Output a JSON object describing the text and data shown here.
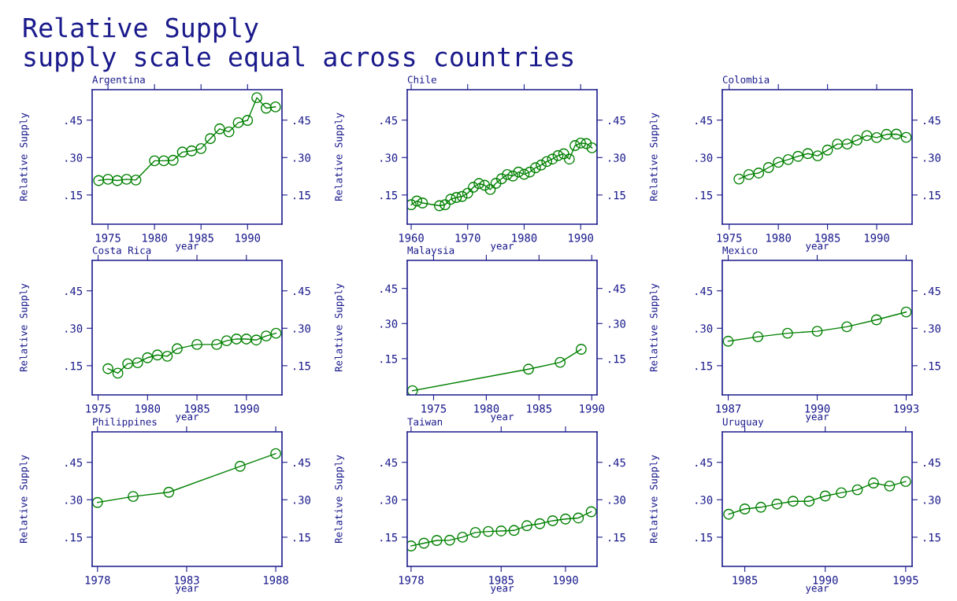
{
  "chart_data": [
    {
      "type": "line",
      "title": "Argentina",
      "annotations": [
        "Relative Supply",
        "supply scale equal across countries"
      ],
      "xlabel": "year",
      "ylabel": "Relative Supply",
      "marker": "circle",
      "line_style": "solid",
      "grid": false,
      "x": [
        1974,
        1975,
        1976,
        1977,
        1978,
        1980,
        1981,
        1982,
        1983,
        1984,
        1985,
        1986,
        1987,
        1988,
        1989,
        1990,
        1991,
        1992,
        1993
      ],
      "series": [
        {
          "color": "#008000",
          "values": [
            0.208,
            0.213,
            0.208,
            0.213,
            0.21,
            0.287,
            0.287,
            0.289,
            0.322,
            0.327,
            0.336,
            0.376,
            0.415,
            0.403,
            0.44,
            0.449,
            0.54,
            0.498,
            0.503
          ]
        }
      ],
      "xlim": [
        1973.3,
        1993.7
      ],
      "xticks": [
        1975,
        1980,
        1985,
        1990
      ],
      "ylim": [
        0.033,
        0.572
      ],
      "yticks": [
        {
          "value": 0.15,
          "label": ".15"
        },
        {
          "value": 0.3,
          "label": ".30"
        },
        {
          "value": 0.45,
          "label": ".45"
        }
      ],
      "y2lim": [
        0.033,
        0.572
      ],
      "y2ticks": [
        {
          "value": 0.15,
          "label": ".15"
        },
        {
          "value": 0.3,
          "label": ".30"
        },
        {
          "value": 0.45,
          "label": ".45"
        }
      ]
    },
    {
      "type": "line",
      "title": "Chile",
      "xlabel": "year",
      "ylabel": "Relative Supply",
      "marker": "circle",
      "line_style": "solid",
      "grid": false,
      "x": [
        1960,
        1961,
        1962,
        1965,
        1966,
        1967,
        1968,
        1969,
        1970,
        1971,
        1972,
        1973,
        1974,
        1975,
        1976,
        1977,
        1978,
        1979,
        1980,
        1981,
        1982,
        1983,
        1984,
        1985,
        1986,
        1987,
        1988,
        1989,
        1990,
        1991,
        1992
      ],
      "series": [
        {
          "color": "#008000",
          "values": [
            0.111,
            0.126,
            0.118,
            0.107,
            0.111,
            0.133,
            0.14,
            0.144,
            0.157,
            0.181,
            0.196,
            0.189,
            0.172,
            0.197,
            0.215,
            0.232,
            0.226,
            0.242,
            0.233,
            0.242,
            0.259,
            0.27,
            0.284,
            0.294,
            0.308,
            0.315,
            0.294,
            0.348,
            0.358,
            0.356,
            0.339
          ]
        }
      ],
      "xlim": [
        1959.3,
        1992.9
      ],
      "xticks": [
        1960,
        1970,
        1980,
        1990
      ],
      "ylim": [
        0.033,
        0.572
      ],
      "yticks": [
        {
          "value": 0.15,
          "label": ".15"
        },
        {
          "value": 0.3,
          "label": ".30"
        },
        {
          "value": 0.45,
          "label": ".45"
        }
      ],
      "y2lim": [
        0.033,
        0.572
      ],
      "y2ticks": [
        {
          "value": 0.15,
          "label": ".15"
        },
        {
          "value": 0.3,
          "label": ".30"
        },
        {
          "value": 0.45,
          "label": ".45"
        }
      ]
    },
    {
      "type": "line",
      "title": "Colombia",
      "xlabel": "year",
      "ylabel": "Relative Supply",
      "marker": "circle",
      "line_style": "solid",
      "grid": false,
      "x": [
        1976,
        1977,
        1978,
        1979,
        1980,
        1981,
        1982,
        1983,
        1984,
        1985,
        1986,
        1987,
        1988,
        1989,
        1990,
        1991,
        1992,
        1993
      ],
      "series": [
        {
          "color": "#008000",
          "values": [
            0.214,
            0.232,
            0.238,
            0.26,
            0.281,
            0.292,
            0.305,
            0.316,
            0.307,
            0.33,
            0.354,
            0.354,
            0.37,
            0.388,
            0.38,
            0.393,
            0.394,
            0.381
          ]
        }
      ],
      "xlim": [
        1974.3,
        1993.6
      ],
      "xticks": [
        1975,
        1980,
        1985,
        1990
      ],
      "ylim": [
        0.033,
        0.572
      ],
      "yticks": [
        {
          "value": 0.15,
          "label": ".15"
        },
        {
          "value": 0.3,
          "label": ".30"
        },
        {
          "value": 0.45,
          "label": ".45"
        }
      ],
      "y2lim": [
        0.033,
        0.572
      ],
      "y2ticks": [
        {
          "value": 0.15,
          "label": ".15"
        },
        {
          "value": 0.3,
          "label": ".30"
        },
        {
          "value": 0.45,
          "label": ".45"
        }
      ]
    },
    {
      "type": "line",
      "title": "Costa Rica",
      "xlabel": "year",
      "ylabel": "Relative Supply",
      "marker": "circle",
      "line_style": "solid",
      "grid": false,
      "x": [
        1976,
        1977,
        1978,
        1979,
        1980,
        1981,
        1982,
        1983,
        1985,
        1987,
        1988,
        1989,
        1990,
        1991,
        1992,
        1993
      ],
      "series": [
        {
          "color": "#008000",
          "values": [
            0.138,
            0.12,
            0.158,
            0.162,
            0.182,
            0.193,
            0.188,
            0.218,
            0.235,
            0.235,
            0.25,
            0.257,
            0.257,
            0.253,
            0.269,
            0.28
          ]
        }
      ],
      "xlim": [
        1974.4,
        1993.6
      ],
      "xticks": [
        1975,
        1980,
        1985,
        1990
      ],
      "ylim": [
        0.033,
        0.572
      ],
      "yticks": [
        {
          "value": 0.15,
          "label": ".15"
        },
        {
          "value": 0.3,
          "label": ".30"
        },
        {
          "value": 0.45,
          "label": ".45"
        }
      ],
      "y2lim": [
        0.033,
        0.572
      ],
      "y2ticks": [
        {
          "value": 0.15,
          "label": ".15"
        },
        {
          "value": 0.3,
          "label": ".30"
        },
        {
          "value": 0.45,
          "label": ".45"
        }
      ]
    },
    {
      "type": "line",
      "title": "Malaysia",
      "xlabel": "year",
      "ylabel": "Relative Supply",
      "marker": "circle",
      "line_style": "solid",
      "grid": false,
      "x": [
        1973,
        1984,
        1987,
        1989
      ],
      "series": [
        {
          "color": "#008000",
          "values": [
            0.013,
            0.105,
            0.134,
            0.19
          ]
        }
      ],
      "xlim": [
        1972.5,
        1990.5
      ],
      "xticks": [
        1975,
        1980,
        1985,
        1990
      ],
      "ylim": [
        -0.005,
        0.57
      ],
      "yticks": [
        {
          "value": 0.15,
          "label": ".15"
        },
        {
          "value": 0.3,
          "label": ".30"
        },
        {
          "value": 0.45,
          "label": ".45"
        }
      ],
      "y2lim": [
        -0.005,
        0.57
      ],
      "y2ticks": [
        {
          "value": 0.15,
          "label": ".15"
        },
        {
          "value": 0.3,
          "label": ".30"
        },
        {
          "value": 0.45,
          "label": ".45"
        }
      ]
    },
    {
      "type": "line",
      "title": "Mexico",
      "xlabel": "year",
      "ylabel": "Relative Supply",
      "marker": "circle",
      "line_style": "solid",
      "grid": false,
      "x": [
        1987,
        1988,
        1989,
        1990,
        1991,
        1992,
        1993
      ],
      "series": [
        {
          "color": "#008000",
          "values": [
            0.248,
            0.266,
            0.28,
            0.288,
            0.306,
            0.334,
            0.365
          ]
        }
      ],
      "xlim": [
        1986.8,
        1993.2
      ],
      "xticks": [
        1987,
        1990,
        1993
      ],
      "ylim": [
        0.033,
        0.572
      ],
      "yticks": [
        {
          "value": 0.15,
          "label": ".15"
        },
        {
          "value": 0.3,
          "label": ".30"
        },
        {
          "value": 0.45,
          "label": ".45"
        }
      ],
      "y2lim": [
        0.033,
        0.572
      ],
      "y2ticks": [
        {
          "value": 0.15,
          "label": ".15"
        },
        {
          "value": 0.3,
          "label": ".30"
        },
        {
          "value": 0.45,
          "label": ".45"
        }
      ]
    },
    {
      "type": "line",
      "title": "Philippines",
      "xlabel": "year",
      "ylabel": "Relative Supply",
      "marker": "circle",
      "line_style": "solid",
      "grid": false,
      "x": [
        1978,
        1980,
        1982,
        1986,
        1988
      ],
      "series": [
        {
          "color": "#008000",
          "values": [
            0.289,
            0.313,
            0.33,
            0.434,
            0.485
          ]
        }
      ],
      "xlim": [
        1977.7,
        1988.35
      ],
      "xticks": [
        1978,
        1983,
        1988
      ],
      "ylim": [
        0.033,
        0.572
      ],
      "yticks": [
        {
          "value": 0.15,
          "label": ".15"
        },
        {
          "value": 0.3,
          "label": ".30"
        },
        {
          "value": 0.45,
          "label": ".45"
        }
      ],
      "y2lim": [
        0.033,
        0.572
      ],
      "y2ticks": [
        {
          "value": 0.15,
          "label": ".15"
        },
        {
          "value": 0.3,
          "label": ".30"
        },
        {
          "value": 0.45,
          "label": ".45"
        }
      ]
    },
    {
      "type": "line",
      "title": "Taiwan",
      "xlabel": "year",
      "ylabel": "Relative Supply",
      "marker": "circle",
      "line_style": "solid",
      "grid": false,
      "x": [
        1978,
        1979,
        1980,
        1981,
        1982,
        1983,
        1984,
        1985,
        1986,
        1987,
        1988,
        1989,
        1990,
        1991,
        1992
      ],
      "series": [
        {
          "color": "#008000",
          "values": [
            0.115,
            0.126,
            0.137,
            0.138,
            0.15,
            0.169,
            0.173,
            0.175,
            0.177,
            0.196,
            0.204,
            0.216,
            0.223,
            0.227,
            0.252
          ]
        }
      ],
      "xlim": [
        1977.7,
        1992.45
      ],
      "xticks": [
        1978,
        1985,
        1990
      ],
      "ylim": [
        0.033,
        0.572
      ],
      "yticks": [
        {
          "value": 0.15,
          "label": ".15"
        },
        {
          "value": 0.3,
          "label": ".30"
        },
        {
          "value": 0.45,
          "label": ".45"
        }
      ],
      "y2lim": [
        0.033,
        0.572
      ],
      "y2ticks": [
        {
          "value": 0.15,
          "label": ".15"
        },
        {
          "value": 0.3,
          "label": ".30"
        },
        {
          "value": 0.45,
          "label": ".45"
        }
      ]
    },
    {
      "type": "line",
      "title": "Uruguay",
      "xlabel": "year",
      "ylabel": "Relative Supply",
      "marker": "circle",
      "line_style": "solid",
      "grid": false,
      "x": [
        1984,
        1985,
        1986,
        1987,
        1988,
        1989,
        1990,
        1991,
        1992,
        1993,
        1994,
        1995
      ],
      "series": [
        {
          "color": "#008000",
          "values": [
            0.242,
            0.263,
            0.27,
            0.283,
            0.294,
            0.294,
            0.315,
            0.328,
            0.34,
            0.367,
            0.355,
            0.373
          ]
        }
      ],
      "xlim": [
        1983.6,
        1995.4
      ],
      "xticks": [
        1985,
        1990,
        1995
      ],
      "ylim": [
        0.033,
        0.572
      ],
      "yticks": [
        {
          "value": 0.15,
          "label": ".15"
        },
        {
          "value": 0.3,
          "label": ".30"
        },
        {
          "value": 0.45,
          "label": ".45"
        }
      ],
      "y2lim": [
        0.033,
        0.572
      ],
      "y2ticks": [
        {
          "value": 0.15,
          "label": ".15"
        },
        {
          "value": 0.3,
          "label": ".30"
        },
        {
          "value": 0.45,
          "label": ".45"
        }
      ]
    }
  ]
}
